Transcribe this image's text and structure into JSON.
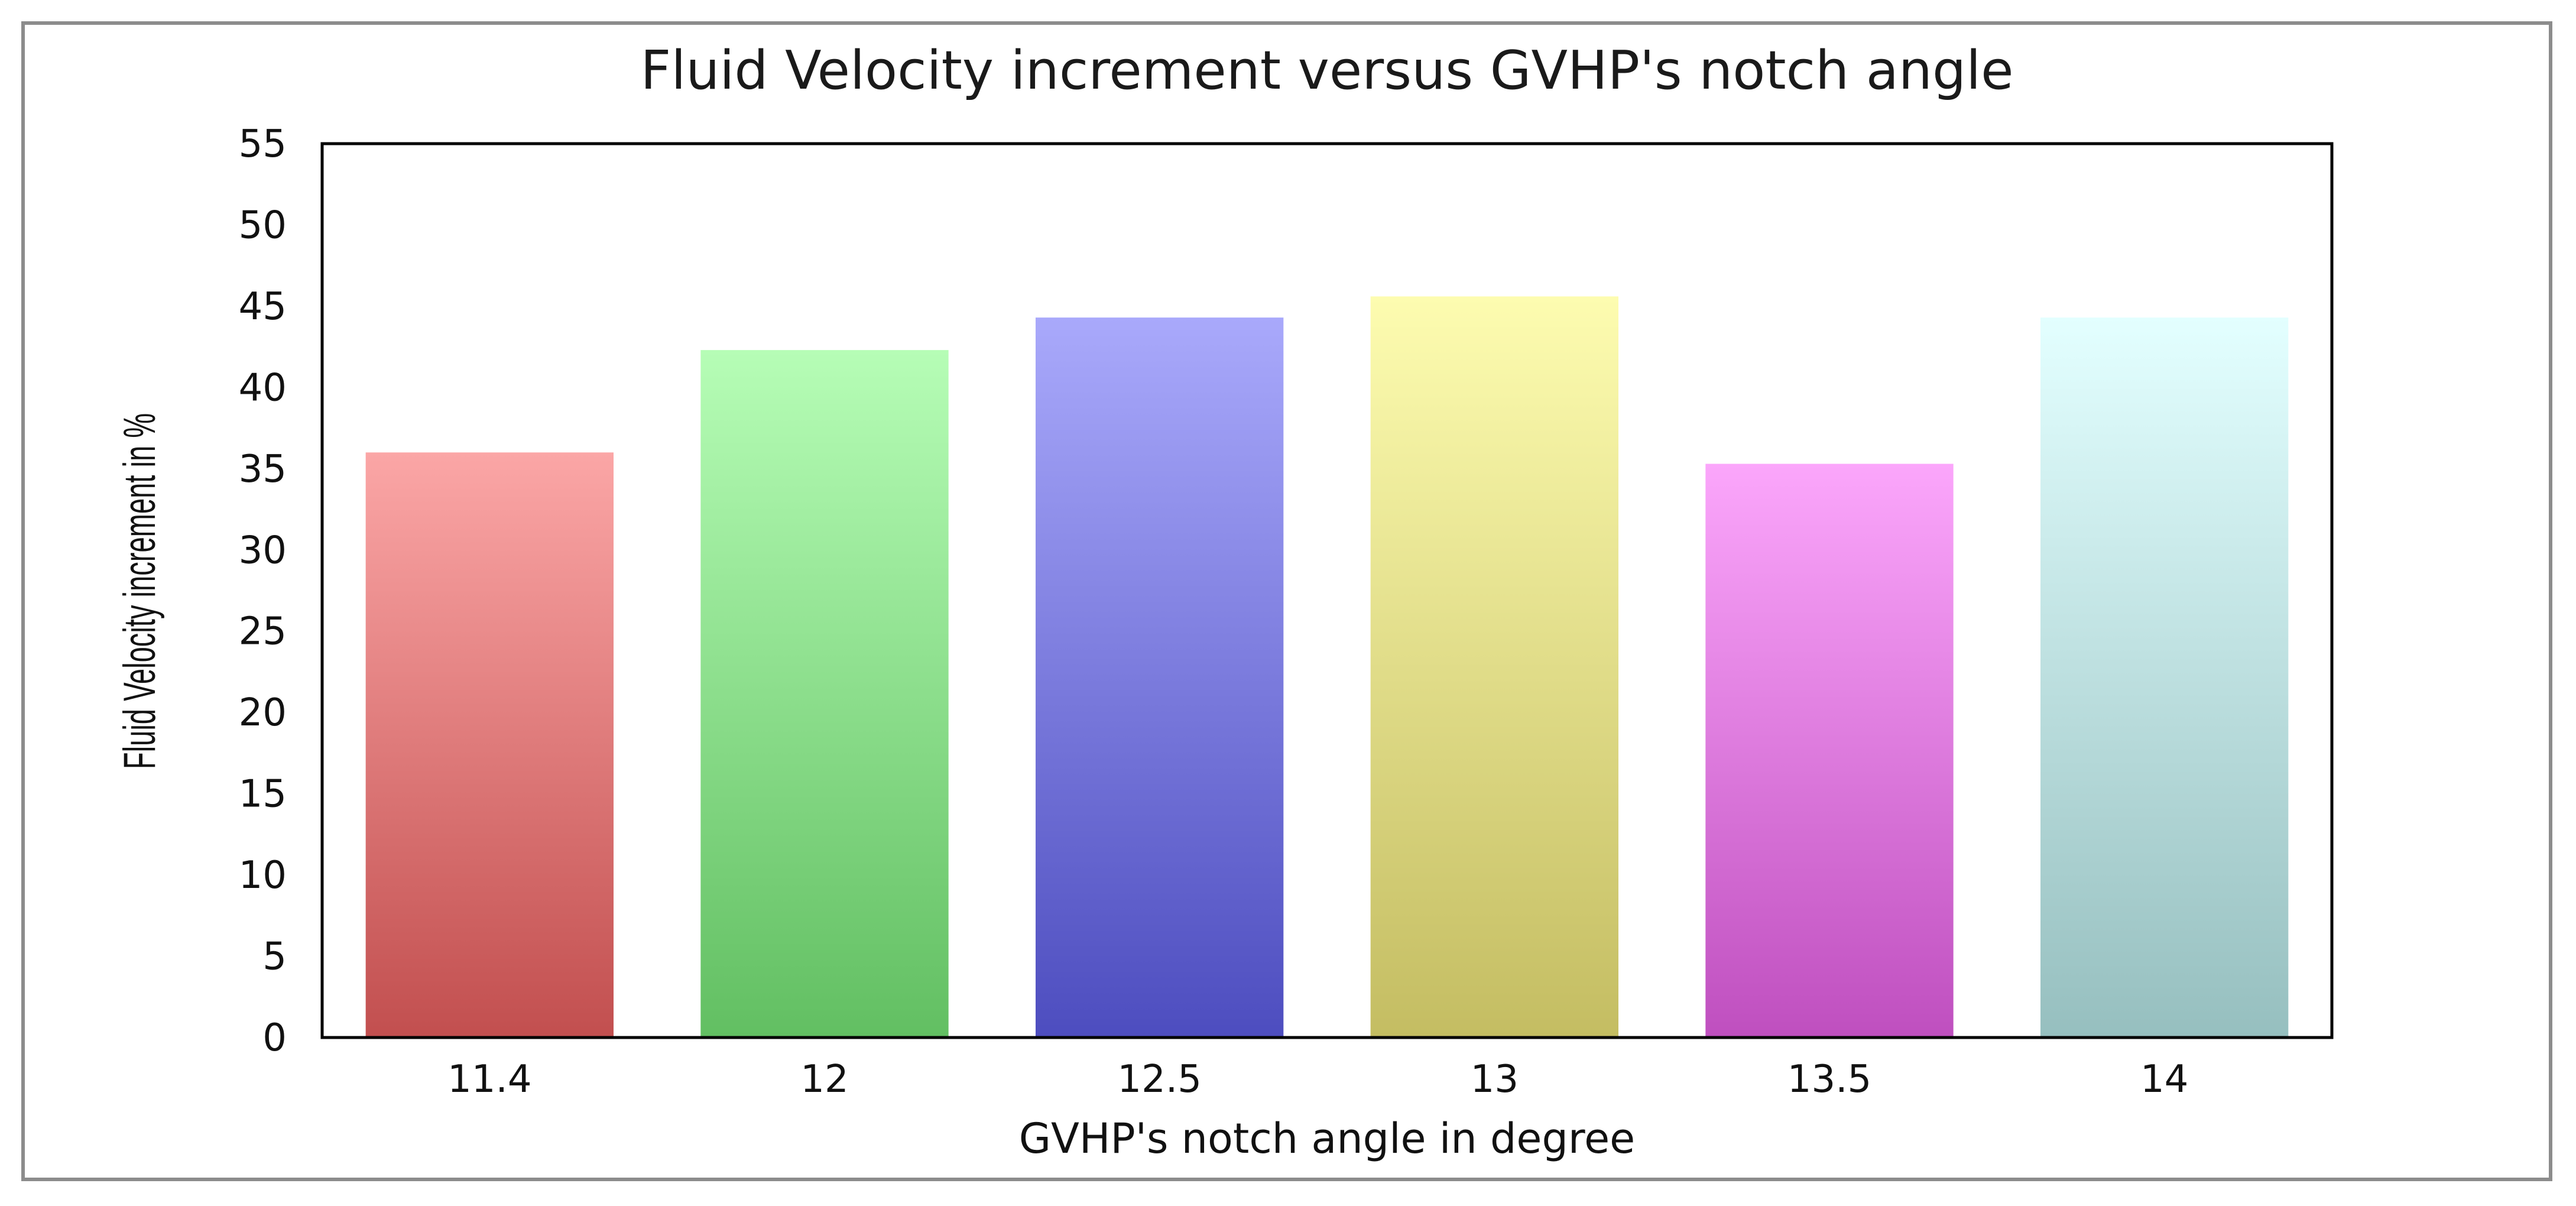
{
  "chart_data": {
    "type": "bar",
    "title": "Fluid Velocity increment versus GVHP's notch angle",
    "xlabel": "GVHP's notch angle in degree",
    "ylabel": "Fluid Velocity increment in %",
    "categories": [
      "11.4",
      "12",
      "12.5",
      "13",
      "13.5",
      "14"
    ],
    "values": [
      36,
      42.3,
      44.3,
      45.6,
      35.3,
      44.3
    ],
    "ylim": [
      0,
      55
    ],
    "yticks": [
      "0",
      "5",
      "10",
      "15",
      "20",
      "25",
      "30",
      "35",
      "40",
      "45",
      "50",
      "55"
    ],
    "grid": false,
    "legend": "none",
    "bar_colors": [
      {
        "top": "#fba6a6",
        "bottom": "#c24f4f"
      },
      {
        "top": "#b6fdb6",
        "bottom": "#62bf62"
      },
      {
        "top": "#a9a9fb",
        "bottom": "#4d4dbf"
      },
      {
        "top": "#fdfcb0",
        "bottom": "#c4bd62"
      },
      {
        "top": "#fba6fb",
        "bottom": "#bf4fbf"
      },
      {
        "top": "#e3ffff",
        "bottom": "#96bfbf"
      }
    ]
  }
}
